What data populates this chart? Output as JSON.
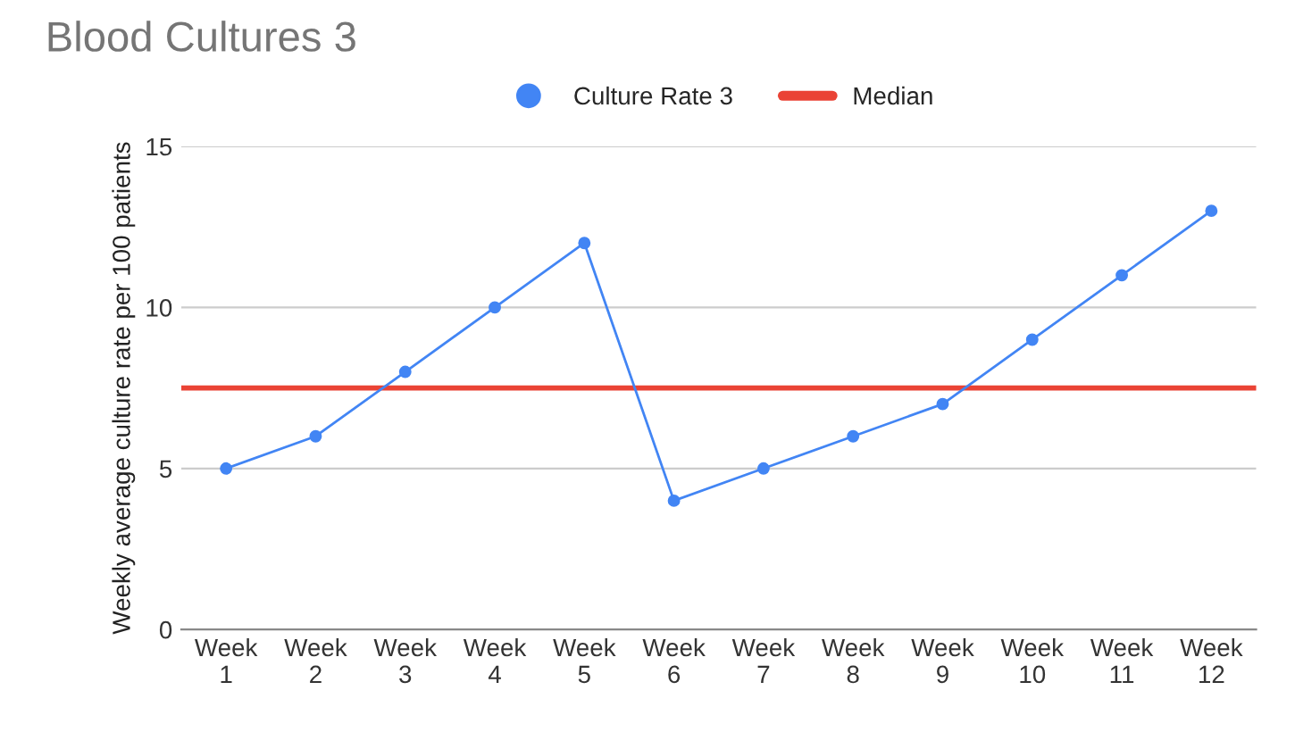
{
  "chart_data": {
    "type": "line",
    "title": "Blood Cultures 3",
    "ylabel": "Weekly average culture rate per 100 patients",
    "categories": [
      "Week 1",
      "Week 2",
      "Week 3",
      "Week 4",
      "Week 5",
      "Week 6",
      "Week 7",
      "Week 8",
      "Week 9",
      "Week 10",
      "Week 11",
      "Week 12"
    ],
    "series": [
      {
        "name": "Culture Rate 3",
        "color": "#4285f4",
        "values": [
          5,
          6,
          8,
          10,
          12,
          4,
          5,
          6,
          7,
          9,
          11,
          13
        ]
      }
    ],
    "ref_lines": [
      {
        "axis": "y",
        "value": 7.5,
        "label": "Median",
        "color": "#ea4335",
        "line_style": "solid"
      }
    ],
    "ylim": [
      0,
      15
    ],
    "yticks": [
      0,
      5,
      10,
      15
    ],
    "grid": "y",
    "legend": "top",
    "marker": "circle"
  }
}
